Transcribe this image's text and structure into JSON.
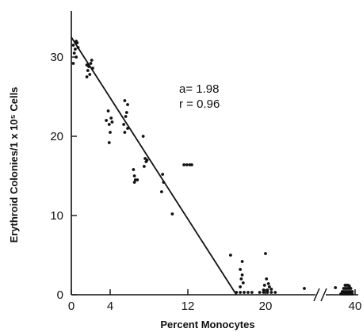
{
  "chart_data": {
    "type": "scatter",
    "title": "",
    "xlabel": "Percent Monocytes",
    "ylabel": "Erythroid Colonies/1 x 10⁵ Cells",
    "xlim_main": [
      0,
      30
    ],
    "xlim_break": [
      34,
      42
    ],
    "ylim": [
      0,
      35
    ],
    "x_ticks": [
      {
        "value": 0,
        "label": "0"
      },
      {
        "value": 4,
        "label": "4"
      },
      {
        "value": 12,
        "label": "12"
      },
      {
        "value": 20,
        "label": "20"
      },
      {
        "value": 40,
        "label": "40"
      }
    ],
    "y_ticks": [
      {
        "value": 0,
        "label": "0"
      },
      {
        "value": 10,
        "label": "10"
      },
      {
        "value": 20,
        "label": "20"
      },
      {
        "value": 30,
        "label": "30"
      }
    ],
    "x_axis_break": true,
    "grid": false,
    "annotations": [
      "a= 1.98",
      "r = 0.96"
    ],
    "fit_line": {
      "x": [
        0,
        17
      ],
      "y": [
        32.5,
        0
      ]
    },
    "points": [
      {
        "x": 0.2,
        "y": 31.5
      },
      {
        "x": 0.4,
        "y": 31.0
      },
      {
        "x": 0.6,
        "y": 31.8
      },
      {
        "x": 0.3,
        "y": 30.5
      },
      {
        "x": 0.5,
        "y": 30.0
      },
      {
        "x": 0.2,
        "y": 29.2
      },
      {
        "x": 0.7,
        "y": 31.2
      },
      {
        "x": 0.5,
        "y": 32.0
      },
      {
        "x": 1.6,
        "y": 29.0
      },
      {
        "x": 1.8,
        "y": 28.8
      },
      {
        "x": 2.0,
        "y": 29.2
      },
      {
        "x": 1.7,
        "y": 28.3
      },
      {
        "x": 2.2,
        "y": 28.6
      },
      {
        "x": 1.9,
        "y": 27.8
      },
      {
        "x": 1.6,
        "y": 27.5
      },
      {
        "x": 2.1,
        "y": 29.6
      },
      {
        "x": 3.6,
        "y": 22.0
      },
      {
        "x": 3.9,
        "y": 21.5
      },
      {
        "x": 4.1,
        "y": 22.3
      },
      {
        "x": 3.8,
        "y": 23.2
      },
      {
        "x": 4.0,
        "y": 20.5
      },
      {
        "x": 3.9,
        "y": 19.2
      },
      {
        "x": 4.2,
        "y": 21.8
      },
      {
        "x": 5.5,
        "y": 24.5
      },
      {
        "x": 5.8,
        "y": 24.0
      },
      {
        "x": 5.7,
        "y": 23.0
      },
      {
        "x": 5.6,
        "y": 22.5
      },
      {
        "x": 5.4,
        "y": 21.5
      },
      {
        "x": 5.8,
        "y": 21.0
      },
      {
        "x": 5.5,
        "y": 20.5
      },
      {
        "x": 7.4,
        "y": 20.0
      },
      {
        "x": 7.6,
        "y": 17.2
      },
      {
        "x": 7.8,
        "y": 17.0
      },
      {
        "x": 7.5,
        "y": 16.2
      },
      {
        "x": 7.7,
        "y": 16.8
      },
      {
        "x": 6.4,
        "y": 15.8
      },
      {
        "x": 6.5,
        "y": 15.0
      },
      {
        "x": 6.6,
        "y": 14.5
      },
      {
        "x": 6.5,
        "y": 14.2
      },
      {
        "x": 6.8,
        "y": 14.5
      },
      {
        "x": 9.4,
        "y": 15.2
      },
      {
        "x": 9.5,
        "y": 14.2
      },
      {
        "x": 9.3,
        "y": 13.0
      },
      {
        "x": 10.4,
        "y": 10.2
      },
      {
        "x": 11.6,
        "y": 16.4
      },
      {
        "x": 11.9,
        "y": 16.4
      },
      {
        "x": 12.2,
        "y": 16.4
      },
      {
        "x": 12.4,
        "y": 16.4
      },
      {
        "x": 16.4,
        "y": 5.0
      },
      {
        "x": 17.6,
        "y": 4.2
      },
      {
        "x": 17.4,
        "y": 3.2
      },
      {
        "x": 17.6,
        "y": 2.5
      },
      {
        "x": 17.5,
        "y": 2.0
      },
      {
        "x": 17.7,
        "y": 1.5
      },
      {
        "x": 17.4,
        "y": 1.0
      },
      {
        "x": 17.0,
        "y": 0.3
      },
      {
        "x": 17.4,
        "y": 0.3
      },
      {
        "x": 17.8,
        "y": 0.3
      },
      {
        "x": 18.2,
        "y": 0.3
      },
      {
        "x": 18.6,
        "y": 0.3
      },
      {
        "x": 20.0,
        "y": 5.2
      },
      {
        "x": 20.1,
        "y": 2.0
      },
      {
        "x": 20.3,
        "y": 1.4
      },
      {
        "x": 19.9,
        "y": 1.2
      },
      {
        "x": 20.4,
        "y": 1.0
      },
      {
        "x": 20.2,
        "y": 0.6
      },
      {
        "x": 19.8,
        "y": 0.6
      },
      {
        "x": 20.6,
        "y": 0.7
      },
      {
        "x": 19.4,
        "y": 0.3
      },
      {
        "x": 19.8,
        "y": 0.3
      },
      {
        "x": 20.2,
        "y": 0.3
      },
      {
        "x": 20.6,
        "y": 0.3
      },
      {
        "x": 21.0,
        "y": 0.3
      },
      {
        "x": 24.0,
        "y": 0.8
      },
      {
        "x": 27.2,
        "y": 0.9
      },
      {
        "x": 37.2,
        "y": 1.2
      },
      {
        "x": 37.6,
        "y": 1.2
      },
      {
        "x": 38.0,
        "y": 1.2
      },
      {
        "x": 38.4,
        "y": 1.1
      },
      {
        "x": 36.8,
        "y": 0.8
      },
      {
        "x": 37.2,
        "y": 0.8
      },
      {
        "x": 37.6,
        "y": 0.8
      },
      {
        "x": 38.0,
        "y": 0.8
      },
      {
        "x": 38.4,
        "y": 0.8
      },
      {
        "x": 38.8,
        "y": 0.8
      },
      {
        "x": 36.4,
        "y": 0.4
      },
      {
        "x": 36.8,
        "y": 0.4
      },
      {
        "x": 37.2,
        "y": 0.4
      },
      {
        "x": 37.6,
        "y": 0.4
      },
      {
        "x": 38.0,
        "y": 0.4
      },
      {
        "x": 38.4,
        "y": 0.4
      },
      {
        "x": 38.8,
        "y": 0.4
      },
      {
        "x": 39.2,
        "y": 0.4
      },
      {
        "x": 36.0,
        "y": 0.1
      },
      {
        "x": 36.4,
        "y": 0.1
      },
      {
        "x": 36.8,
        "y": 0.1
      },
      {
        "x": 37.2,
        "y": 0.1
      },
      {
        "x": 37.6,
        "y": 0.1
      },
      {
        "x": 38.0,
        "y": 0.1
      },
      {
        "x": 38.4,
        "y": 0.1
      },
      {
        "x": 38.8,
        "y": 0.1
      },
      {
        "x": 39.2,
        "y": 0.1
      }
    ]
  }
}
